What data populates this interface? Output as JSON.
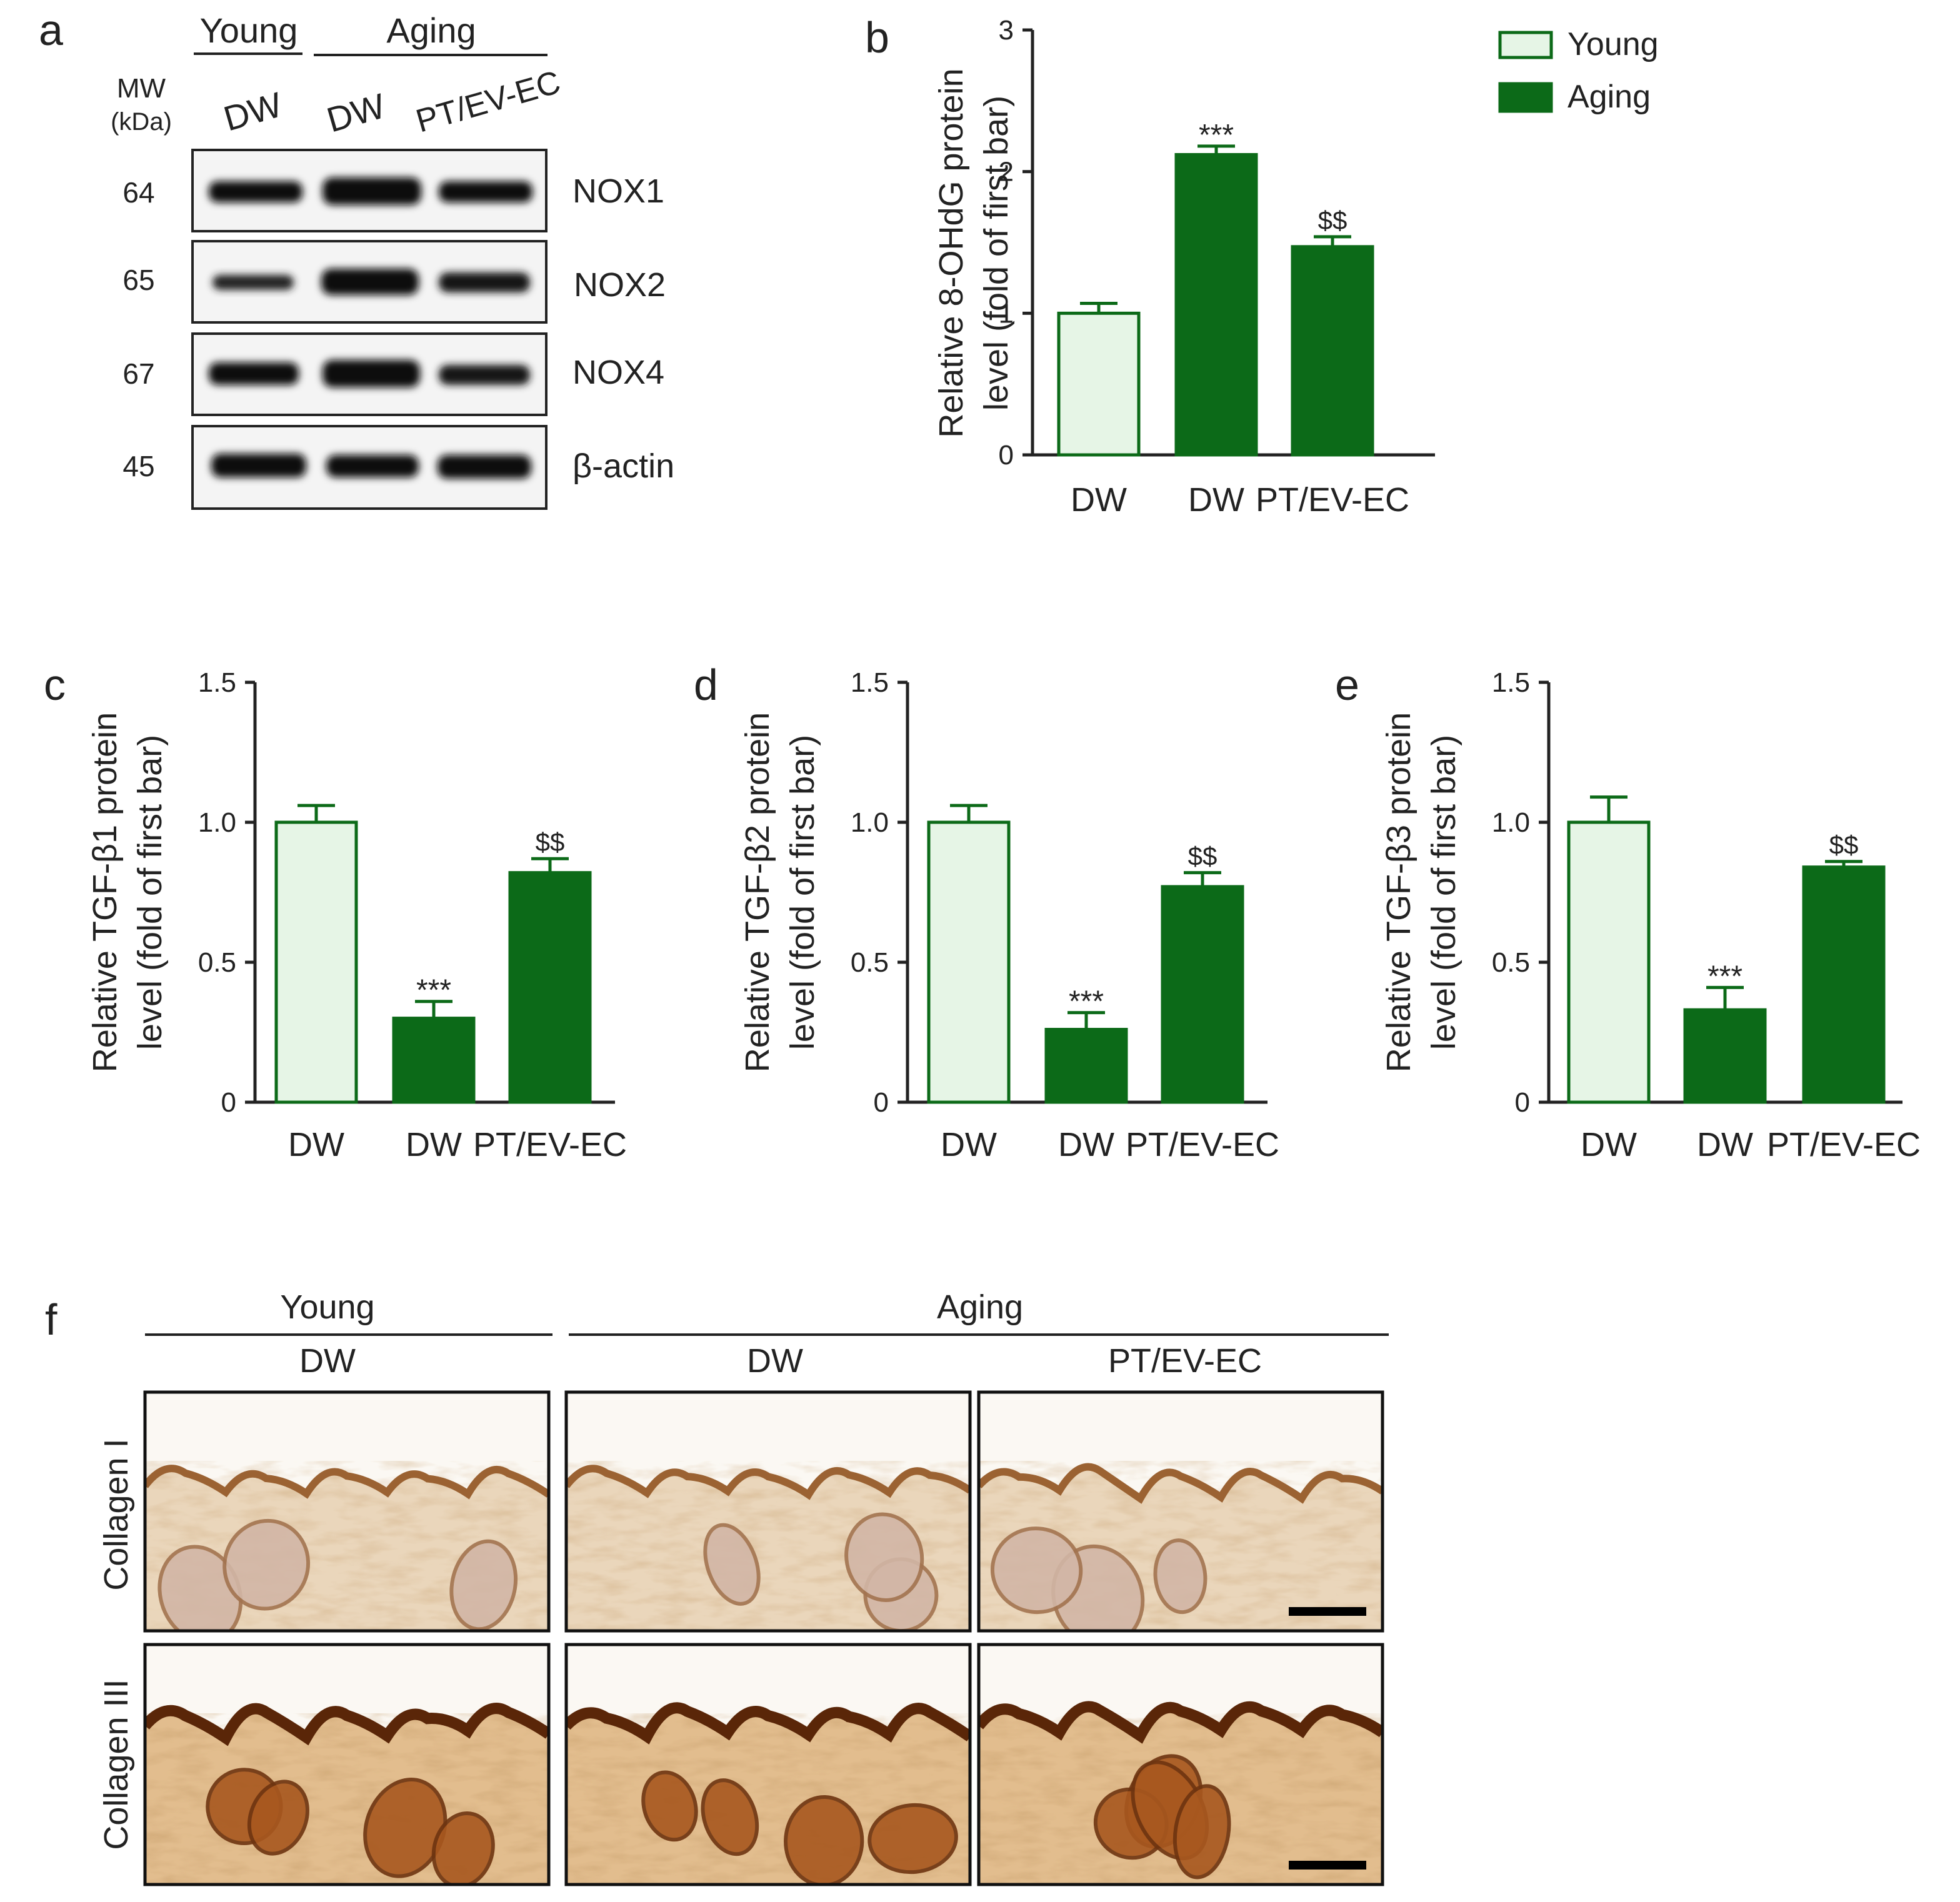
{
  "colors": {
    "young_fill": "#e6f5e6",
    "young_stroke": "#0c6a18",
    "aging_fill": "#0c6a18",
    "text": "#222222",
    "skin_light": "#efdcc2",
    "skin_stain": "#c08a55",
    "skin_dark": "#6e3410"
  },
  "panel_a": {
    "letter": "a",
    "mw_label": "MW",
    "kda_label": "(kDa)",
    "group_young": "Young",
    "group_aging": "Aging",
    "lanes": [
      "DW",
      "DW",
      "PT/EV-EC"
    ],
    "rows": [
      {
        "mw": "64",
        "protein": "NOX1",
        "intensity": [
          0.85,
          1.0,
          0.85
        ]
      },
      {
        "mw": "65",
        "protein": "NOX2",
        "intensity": [
          0.55,
          0.95,
          0.75
        ]
      },
      {
        "mw": "67",
        "protein": "NOX4",
        "intensity": [
          0.8,
          1.0,
          0.75
        ]
      },
      {
        "mw": "45",
        "protein": "β-actin",
        "intensity": [
          0.9,
          0.9,
          0.9
        ]
      }
    ]
  },
  "legend": {
    "items": [
      {
        "label": "Young",
        "style": "young"
      },
      {
        "label": "Aging",
        "style": "aging"
      }
    ]
  },
  "chart_data": [
    {
      "id": "b",
      "letter": "b",
      "type": "bar",
      "ylabel_line1": "Relative 8-OHdG protein",
      "ylabel_line2": "level (fold of first bar)",
      "categories": [
        "DW",
        "DW",
        "PT/EV-EC"
      ],
      "groups": [
        "Young",
        "Aging",
        "Aging"
      ],
      "values": [
        1.0,
        2.12,
        1.47
      ],
      "errors": [
        0.07,
        0.06,
        0.07
      ],
      "annotations": [
        "",
        "***",
        "$$"
      ],
      "ylim": [
        0,
        3
      ],
      "yticks": [
        0,
        1,
        2,
        3
      ],
      "ytick_labels": [
        "0",
        "1",
        "2",
        "3"
      ]
    },
    {
      "id": "c",
      "letter": "c",
      "type": "bar",
      "ylabel_line1": "Relative TGF-β1 protein",
      "ylabel_line2": "level (fold of first bar)",
      "categories": [
        "DW",
        "DW",
        "PT/EV-EC"
      ],
      "groups": [
        "Young",
        "Aging",
        "Aging"
      ],
      "values": [
        1.0,
        0.3,
        0.82
      ],
      "errors": [
        0.06,
        0.06,
        0.05
      ],
      "annotations": [
        "",
        "***",
        "$$"
      ],
      "ylim": [
        0,
        1.5
      ],
      "yticks": [
        0,
        0.5,
        1.0,
        1.5
      ],
      "ytick_labels": [
        "0",
        "0.5",
        "1.0",
        "1.5"
      ]
    },
    {
      "id": "d",
      "letter": "d",
      "type": "bar",
      "ylabel_line1": "Relative TGF-β2 protein",
      "ylabel_line2": "level (fold of first bar)",
      "categories": [
        "DW",
        "DW",
        "PT/EV-EC"
      ],
      "groups": [
        "Young",
        "Aging",
        "Aging"
      ],
      "values": [
        1.0,
        0.26,
        0.77
      ],
      "errors": [
        0.06,
        0.06,
        0.05
      ],
      "annotations": [
        "",
        "***",
        "$$"
      ],
      "ylim": [
        0,
        1.5
      ],
      "yticks": [
        0,
        0.5,
        1.0,
        1.5
      ],
      "ytick_labels": [
        "0",
        "0.5",
        "1.0",
        "1.5"
      ]
    },
    {
      "id": "e",
      "letter": "e",
      "type": "bar",
      "ylabel_line1": "Relative TGF-β3 protein",
      "ylabel_line2": "level (fold of first bar)",
      "categories": [
        "DW",
        "DW",
        "PT/EV-EC"
      ],
      "groups": [
        "Young",
        "Aging",
        "Aging"
      ],
      "values": [
        1.0,
        0.33,
        0.84
      ],
      "errors": [
        0.09,
        0.08,
        0.02
      ],
      "annotations": [
        "",
        "***",
        "$$"
      ],
      "ylim": [
        0,
        1.5
      ],
      "yticks": [
        0,
        0.5,
        1.0,
        1.5
      ],
      "ytick_labels": [
        "0",
        "0.5",
        "1.0",
        "1.5"
      ]
    }
  ],
  "panel_f": {
    "letter": "f",
    "group_young": "Young",
    "group_aging": "Aging",
    "columns": [
      "DW",
      "DW",
      "PT/EV-EC"
    ],
    "rows": [
      "Collagen I",
      "Collagen III"
    ]
  }
}
